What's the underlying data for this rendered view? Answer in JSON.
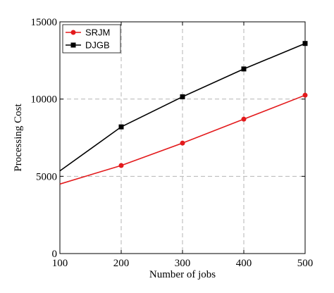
{
  "chart_data": {
    "type": "line",
    "xlabel": "Number of jobs",
    "ylabel": "Processing Cost",
    "xlim": [
      100,
      500
    ],
    "ylim": [
      0,
      15000
    ],
    "xticks": [
      100,
      200,
      300,
      400,
      500
    ],
    "yticks": [
      0,
      5000,
      10000,
      15000
    ],
    "grid": true,
    "legend_position": "top-left",
    "series": [
      {
        "name": "SRJM",
        "color": "#e31a1c",
        "marker": "circle",
        "x": [
          100,
          200,
          300,
          400,
          500
        ],
        "y": [
          4500,
          5700,
          7150,
          8700,
          10250
        ],
        "markers_shown": [
          false,
          true,
          true,
          true,
          true
        ]
      },
      {
        "name": "DJGB",
        "color": "#000000",
        "marker": "square",
        "x": [
          100,
          200,
          300,
          400,
          500
        ],
        "y": [
          5350,
          8200,
          10150,
          11950,
          13600
        ],
        "markers_shown": [
          false,
          true,
          true,
          true,
          true
        ]
      }
    ]
  }
}
